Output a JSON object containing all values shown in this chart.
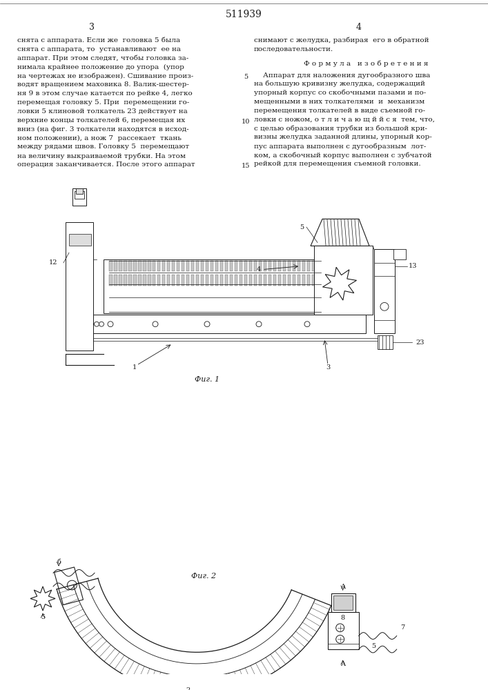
{
  "patent_number": "511939",
  "col_left": "3",
  "col_right": "4",
  "bg_color": "#ffffff",
  "text_color": "#1a1a1a",
  "left_column_text": [
    "снята с аппарата. Если же  головка 5 была",
    "снята с аппарата, то  устанавливают  ее на",
    "аппарат. При этом следят, чтобы головка за-",
    "нимала крайнее положение до упора  (упор",
    "на чертежах не изображен). Сшивание произ-",
    "водят вращением маховика 8. Валик-шестер-",
    "ня 9 в этом случае катается по рейке 4, легко",
    "перемещая головку 5. При  перемещении го-",
    "ловки 5 клиновой толкатель 23 действует на",
    "верхние концы толкателей 6, перемещая их",
    "вниз (на фиг. 3 толкатели находятся в исход-",
    "ном положении), а нож 7  рассекает  ткань",
    "между рядами швов. Головку 5  перемещают",
    "на величину выкраиваемой трубки. На этом",
    "операция заканчивается. После этого аппарат"
  ],
  "right_column_text_top": [
    "снимают с желудка, разбирая  его в обратной",
    "последовательности."
  ],
  "formula_title": "Ф о р м у л а   и з о б р е т е н и я",
  "right_column_formula": [
    "    Аппарат для наложения дугообразного шва",
    "на большую кривизну желудка, содержащий",
    "упорный корпус со скобочными пазами и по-",
    "мещенными в них толкателями  и  механизм",
    "перемещения толкателей в виде съемной го-",
    "ловки с ножом, о т л и ч а ю щ й й с я  тем, что,",
    "с целью образования трубки из большой кри-",
    "визны желудка заданной длины, упорный кор-",
    "пус аппарата выполнен с дугообразным  лот-",
    "ком, а скобочный корпус выполнен с зубчатой",
    "рейкой для перемещения съемной головки."
  ],
  "fig1_label": "Фиг. 1",
  "fig2_label": "Фиг. 2"
}
